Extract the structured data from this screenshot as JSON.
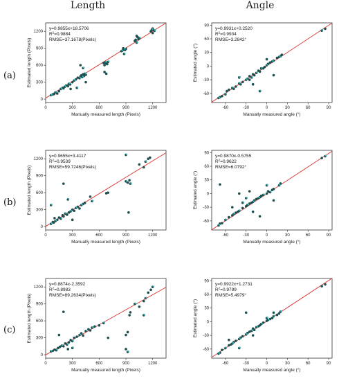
{
  "column_headers": [
    "Length",
    "Angle"
  ],
  "row_labels": [
    "(a)",
    "(b)",
    "(c)"
  ],
  "colors": {
    "point": "#1f4e4e",
    "point_highlight": "#2fb3b8",
    "fit_line": "#d9302c",
    "axis": "#333333"
  },
  "chart_data": [
    {
      "type": "scatter",
      "xlabel": "Manually measured length (Pixels)",
      "ylabel": "Estimated length (Pixels)",
      "xlim": [
        0,
        1350
      ],
      "ylim": [
        -60,
        1350
      ],
      "xticks": [
        0,
        300,
        600,
        900,
        1200
      ],
      "yticks": [
        0,
        300,
        600,
        900,
        1200
      ],
      "annotation": [
        "y=0.9855x+18.5706",
        "R²=0.9884",
        "RMSE=37.1678(Pixels)"
      ],
      "fit": {
        "slope": 0.9855,
        "intercept": 18.5706
      },
      "x": [
        60,
        80,
        95,
        110,
        130,
        150,
        170,
        190,
        200,
        215,
        230,
        250,
        260,
        275,
        300,
        320,
        340,
        360,
        380,
        390,
        400,
        410,
        420,
        430,
        440,
        450,
        390,
        420,
        450,
        280,
        350,
        650,
        660,
        670,
        680,
        690,
        700,
        660,
        680,
        850,
        860,
        870,
        880,
        890,
        900,
        880,
        1000,
        1010,
        1020,
        1030,
        1040,
        1050,
        1020,
        1180,
        1190,
        1200,
        1210,
        1220,
        1200
      ],
      "y": [
        70,
        85,
        90,
        120,
        100,
        140,
        180,
        200,
        190,
        220,
        240,
        230,
        270,
        260,
        300,
        330,
        350,
        380,
        370,
        400,
        420,
        390,
        440,
        410,
        450,
        430,
        600,
        550,
        300,
        180,
        200,
        640,
        600,
        650,
        630,
        620,
        660,
        480,
        450,
        850,
        860,
        900,
        880,
        870,
        890,
        800,
        1030,
        1050,
        1000,
        1100,
        1060,
        1080,
        1120,
        1200,
        1230,
        1250,
        1220,
        1210,
        1170
      ]
    },
    {
      "type": "scatter",
      "xlabel": "Manually measured angle (°)",
      "ylabel": "Estimated angle (°)",
      "xlim": [
        -80,
        95
      ],
      "ylim": [
        -80,
        95
      ],
      "xticks": [
        -60,
        -30,
        0,
        30,
        60,
        90
      ],
      "yticks": [
        -60,
        -30,
        0,
        30,
        60,
        90
      ],
      "annotation": [
        "y=0.9931x+0.2520",
        "R²=0.9934",
        "RMSE=3.2842°"
      ],
      "fit": {
        "slope": 0.9931,
        "intercept": 0.252
      },
      "x": [
        -70,
        -68,
        -65,
        -60,
        -58,
        -55,
        -50,
        -48,
        -45,
        -40,
        -38,
        -35,
        -30,
        -28,
        -25,
        -22,
        -20,
        -18,
        -15,
        -12,
        -10,
        -8,
        -5,
        -3,
        0,
        2,
        5,
        8,
        10,
        15,
        18,
        20,
        22,
        80,
        85,
        -20,
        -10,
        0,
        10,
        -40,
        -25
      ],
      "y": [
        -70,
        -68,
        -66,
        -62,
        -55,
        -52,
        -48,
        -50,
        -45,
        -38,
        -40,
        -35,
        -30,
        -28,
        -22,
        -25,
        -18,
        -20,
        -15,
        -10,
        -12,
        -5,
        -5,
        -2,
        2,
        5,
        8,
        10,
        12,
        18,
        20,
        22,
        25,
        78,
        82,
        -40,
        -55,
        15,
        -20,
        -25,
        -30
      ]
    },
    {
      "type": "scatter",
      "xlabel": "Manually measured length (Pixels)",
      "ylabel": "Estimated length (Pixels)",
      "xlim": [
        0,
        1350
      ],
      "ylim": [
        -60,
        1350
      ],
      "xticks": [
        0,
        300,
        600,
        900,
        1200
      ],
      "yticks": [
        0,
        300,
        600,
        900,
        1200
      ],
      "annotation": [
        "y=0.9655x+3.4117",
        "R²=0.9539",
        "RMSE=59.7246(Pixels)"
      ],
      "fit": {
        "slope": 0.9655,
        "intercept": 3.4117
      },
      "x": [
        60,
        80,
        90,
        110,
        130,
        150,
        170,
        190,
        200,
        220,
        240,
        260,
        280,
        300,
        320,
        340,
        360,
        380,
        400,
        420,
        440,
        60,
        100,
        200,
        250,
        300,
        500,
        520,
        680,
        700,
        900,
        920,
        940,
        950,
        1050,
        1100,
        1120,
        1150,
        1170,
        900,
        930
      ],
      "y": [
        50,
        80,
        70,
        100,
        120,
        160,
        140,
        200,
        180,
        230,
        210,
        250,
        270,
        300,
        280,
        330,
        350,
        320,
        380,
        400,
        420,
        380,
        150,
        760,
        480,
        120,
        530,
        450,
        590,
        600,
        800,
        780,
        820,
        760,
        1100,
        1050,
        1150,
        1200,
        1220,
        1270,
        250
      ]
    },
    {
      "type": "scatter",
      "xlabel": "Manually measured angle (°)",
      "ylabel": "Estimated angle (°)",
      "xlim": [
        -80,
        95
      ],
      "ylim": [
        -80,
        95
      ],
      "xticks": [
        -60,
        -30,
        0,
        30,
        60,
        90
      ],
      "yticks": [
        -60,
        -30,
        0,
        30,
        60,
        90
      ],
      "annotation": [
        "y=0.9870x-0.5755",
        "R²=0.9622",
        "RMSE=6.0792°"
      ],
      "fit": {
        "slope": 0.987,
        "intercept": -0.5755
      },
      "x": [
        -70,
        -68,
        -65,
        -60,
        -55,
        -50,
        -48,
        -45,
        -42,
        -40,
        -35,
        -30,
        -28,
        -25,
        -22,
        -20,
        -18,
        -15,
        -12,
        -10,
        -8,
        -5,
        0,
        2,
        5,
        8,
        10,
        18,
        20,
        80,
        85,
        -68,
        -40,
        -30,
        -20,
        -10,
        0,
        10,
        -50,
        -35,
        -25
      ],
      "y": [
        -70,
        -66,
        -65,
        -58,
        -52,
        -48,
        -45,
        -42,
        -40,
        -38,
        -32,
        -28,
        -25,
        -22,
        -20,
        -18,
        -15,
        -12,
        -10,
        -8,
        -5,
        -3,
        0,
        5,
        3,
        8,
        10,
        18,
        22,
        78,
        82,
        20,
        0,
        -10,
        -40,
        -50,
        18,
        -15,
        -30,
        -20,
        5
      ]
    },
    {
      "type": "scatter",
      "xlabel": "Manually measured length (Pixels)",
      "ylabel": "Estimated length (Pixels)",
      "xlim": [
        0,
        1350
      ],
      "ylim": [
        -60,
        1350
      ],
      "xticks": [
        0,
        300,
        600,
        900,
        1200
      ],
      "yticks": [
        0,
        300,
        600,
        900,
        1200
      ],
      "annotation": [
        "y=0.8874x-2.3592",
        "R²=0.8983",
        "RMSE=89.2634(Pixels)"
      ],
      "fit": {
        "slope": 0.8874,
        "intercept": -2.3592
      },
      "x": [
        60,
        80,
        100,
        120,
        140,
        160,
        180,
        200,
        220,
        240,
        260,
        280,
        300,
        320,
        350,
        380,
        400,
        420,
        450,
        480,
        500,
        520,
        550,
        600,
        650,
        200,
        250,
        300,
        150,
        900,
        920,
        940,
        950,
        1000,
        1050,
        1100,
        1120,
        1150,
        1180,
        1200,
        900,
        920,
        1100,
        700
      ],
      "y": [
        60,
        70,
        90,
        80,
        120,
        140,
        160,
        150,
        200,
        180,
        220,
        260,
        240,
        300,
        320,
        350,
        380,
        340,
        420,
        450,
        430,
        480,
        500,
        520,
        560,
        760,
        100,
        120,
        350,
        100,
        50,
        700,
        750,
        900,
        850,
        950,
        1000,
        1100,
        1150,
        1200,
        350,
        400,
        700,
        300
      ]
    },
    {
      "type": "scatter",
      "xlabel": "Manually measured angle (°)",
      "ylabel": "Estimated angle (°)",
      "xlim": [
        -80,
        95
      ],
      "ylim": [
        -80,
        95
      ],
      "xticks": [
        -60,
        -30,
        0,
        30,
        60,
        90
      ],
      "yticks": [
        -60,
        -30,
        0,
        30,
        60,
        90
      ],
      "annotation": [
        "y=0.9922x+1.2731",
        "R²=0.9799",
        "RMSE=5.4979°"
      ],
      "fit": {
        "slope": 0.9922,
        "intercept": 1.2731
      },
      "x": [
        -70,
        -68,
        -65,
        -60,
        -55,
        -52,
        -50,
        -48,
        -45,
        -40,
        -38,
        -35,
        -30,
        -28,
        -25,
        -22,
        -20,
        -18,
        -15,
        -12,
        -10,
        -8,
        -5,
        0,
        2,
        5,
        8,
        10,
        15,
        18,
        20,
        80,
        85,
        -40,
        -30,
        -20,
        0,
        10,
        -55
      ],
      "y": [
        -70,
        -68,
        -62,
        -58,
        -52,
        -50,
        -48,
        -45,
        -42,
        -38,
        -35,
        -32,
        -28,
        -25,
        -22,
        -20,
        -15,
        -18,
        -12,
        -10,
        -8,
        -5,
        -2,
        2,
        4,
        6,
        8,
        12,
        15,
        18,
        22,
        78,
        82,
        -58,
        20,
        -30,
        8,
        20,
        -40
      ]
    }
  ]
}
